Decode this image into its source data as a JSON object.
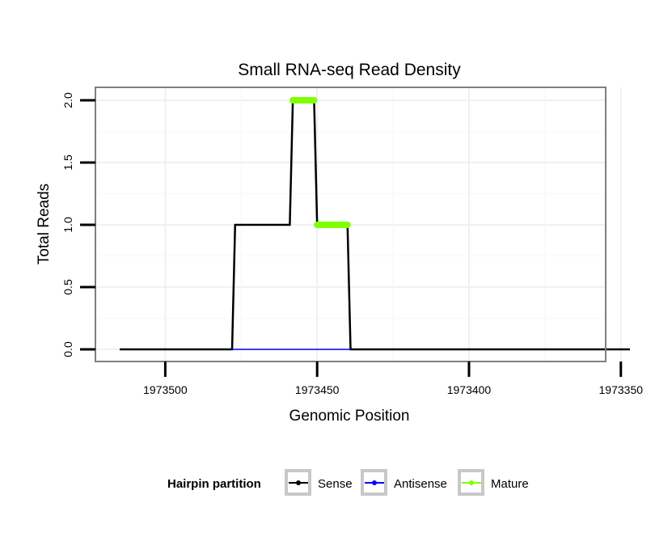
{
  "chart_data": {
    "type": "line",
    "title": "Small RNA-seq Read Density",
    "xlabel": "Genomic Position",
    "ylabel": "Total Reads",
    "x_reversed": true,
    "xlim": [
      1973523,
      1973355
    ],
    "ylim": [
      0,
      2
    ],
    "x_ticks": [
      1973500,
      1973450,
      1973400,
      1973350
    ],
    "x_tick_labels": [
      "1973500",
      "1973450",
      "1973400",
      "1973350"
    ],
    "y_ticks": [
      0,
      0.5,
      1,
      1.5,
      2
    ],
    "y_tick_labels": [
      "0.0",
      "0.5",
      "1.0",
      "1.5",
      "2.0"
    ],
    "grid": true,
    "legend": {
      "title": "Hairpin partition",
      "position": "bottom",
      "entries": [
        "Sense",
        "Antisense",
        "Mature"
      ]
    },
    "colors": {
      "Sense": "#000000",
      "Antisense": "#0000ff",
      "Mature": "#7fff00"
    },
    "series": [
      {
        "name": "Sense",
        "x": [
          1973515,
          1973478,
          1973477,
          1973459,
          1973458,
          1973451,
          1973450,
          1973440,
          1973439,
          1973347
        ],
        "y": [
          0,
          0,
          1,
          1,
          2,
          2,
          1,
          1,
          0,
          0
        ]
      },
      {
        "name": "Antisense",
        "x": [
          1973478,
          1973439
        ],
        "y": [
          0,
          0
        ]
      },
      {
        "name": "Mature",
        "segments": [
          {
            "x": [
              1973458,
              1973451
            ],
            "y": [
              2,
              2
            ]
          },
          {
            "x": [
              1973450,
              1973440
            ],
            "y": [
              1,
              1
            ]
          }
        ]
      }
    ]
  }
}
